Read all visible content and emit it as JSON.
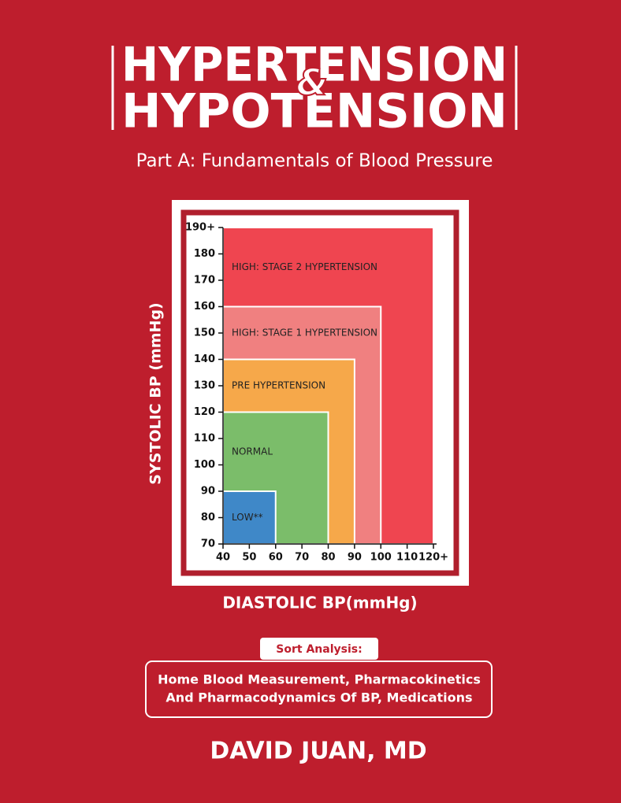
{
  "cover": {
    "title_top": "HYPERTENSION",
    "title_amp": "&",
    "title_bottom": "HYPOTENSION",
    "subtitle": "Part A: Fundamentals of Blood Pressure",
    "badge": "Sort Analysis:",
    "topics": [
      "Home Blood Measurement, Pharmacokinetics",
      "And Pharmacodynamics Of BP, Medications"
    ],
    "author": "DAVID JUAN, MD"
  },
  "chart_data": {
    "type": "zones",
    "x_label": "DIASTOLIC BP(mmHg)",
    "y_label": "SYSTOLIC BP (mmHg)",
    "xlim": [
      40,
      120
    ],
    "ylim": [
      70,
      190
    ],
    "xticks": [
      40,
      50,
      60,
      70,
      80,
      90,
      100,
      110,
      {
        "value": 120,
        "label": "120+"
      }
    ],
    "yticks": [
      70,
      80,
      90,
      100,
      110,
      120,
      130,
      140,
      150,
      160,
      170,
      180,
      {
        "value": 190,
        "label": "190+"
      }
    ],
    "series": [
      {
        "name": "HIGH: STAGE 2 HYPERTENSION",
        "color": "#ef4550",
        "x": 120,
        "y": 190
      },
      {
        "name": "HIGH: STAGE 1 HYPERTENSION",
        "color": "#f08080",
        "x": 100,
        "y": 160
      },
      {
        "name": "PRE HYPERTENSION",
        "color": "#f6a84a",
        "x": 90,
        "y": 140
      },
      {
        "name": "NORMAL",
        "color": "#7bbd6a",
        "x": 80,
        "y": 120
      },
      {
        "name": "LOW**",
        "color": "#3f88c8",
        "x": 60,
        "y": 90
      }
    ]
  }
}
